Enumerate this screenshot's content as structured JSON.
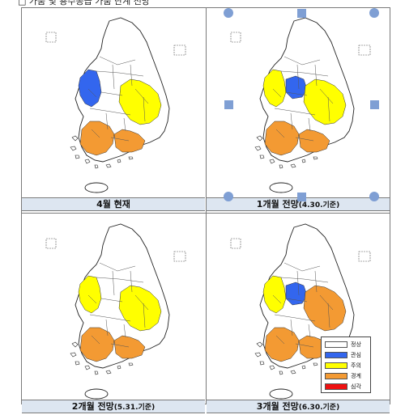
{
  "top_caption": "□ 가뭄 및 용수공급 가뭄 단계 전망",
  "colors": {
    "normal": "#ffffff",
    "interest": "#3366ee",
    "caution": "#ffff00",
    "warning": "#f39a33",
    "serious": "#ee1111",
    "caption_bg": "#dde6f1",
    "selection": "#7f9fd4"
  },
  "maps": [
    {
      "id": "current",
      "title": "4월 현재",
      "subtitle": "",
      "regions": {
        "west_central": "interest",
        "gyeongbuk": "caution",
        "jeonnam": "warning",
        "gyeongnam_coast": "warning"
      }
    },
    {
      "id": "one_month",
      "title": "1개월 전망",
      "subtitle": "(4.30.기준)",
      "regions": {
        "west_central": "caution",
        "chungbuk": "interest",
        "gyeongbuk": "caution",
        "jeonnam": "warning",
        "gyeongnam_coast": "warning"
      }
    },
    {
      "id": "two_month",
      "title": "2개월 전망",
      "subtitle": "(5.31.기준)",
      "regions": {
        "west_central": "caution",
        "gyeongbuk": "caution",
        "jeonnam": "warning",
        "gyeongnam_coast": "warning"
      }
    },
    {
      "id": "three_month",
      "title": "3개월 전망",
      "subtitle": "(6.30.기준)",
      "regions": {
        "west_central": "caution",
        "chungbuk": "interest",
        "gyeongbuk": "warning",
        "jeonnam": "warning",
        "gyeongnam_coast": "warning"
      }
    }
  ],
  "legend": {
    "items": [
      {
        "key": "normal",
        "label": "정상"
      },
      {
        "key": "interest",
        "label": "관심"
      },
      {
        "key": "caution",
        "label": "주의"
      },
      {
        "key": "warning",
        "label": "경계"
      },
      {
        "key": "serious",
        "label": "심각"
      }
    ]
  }
}
